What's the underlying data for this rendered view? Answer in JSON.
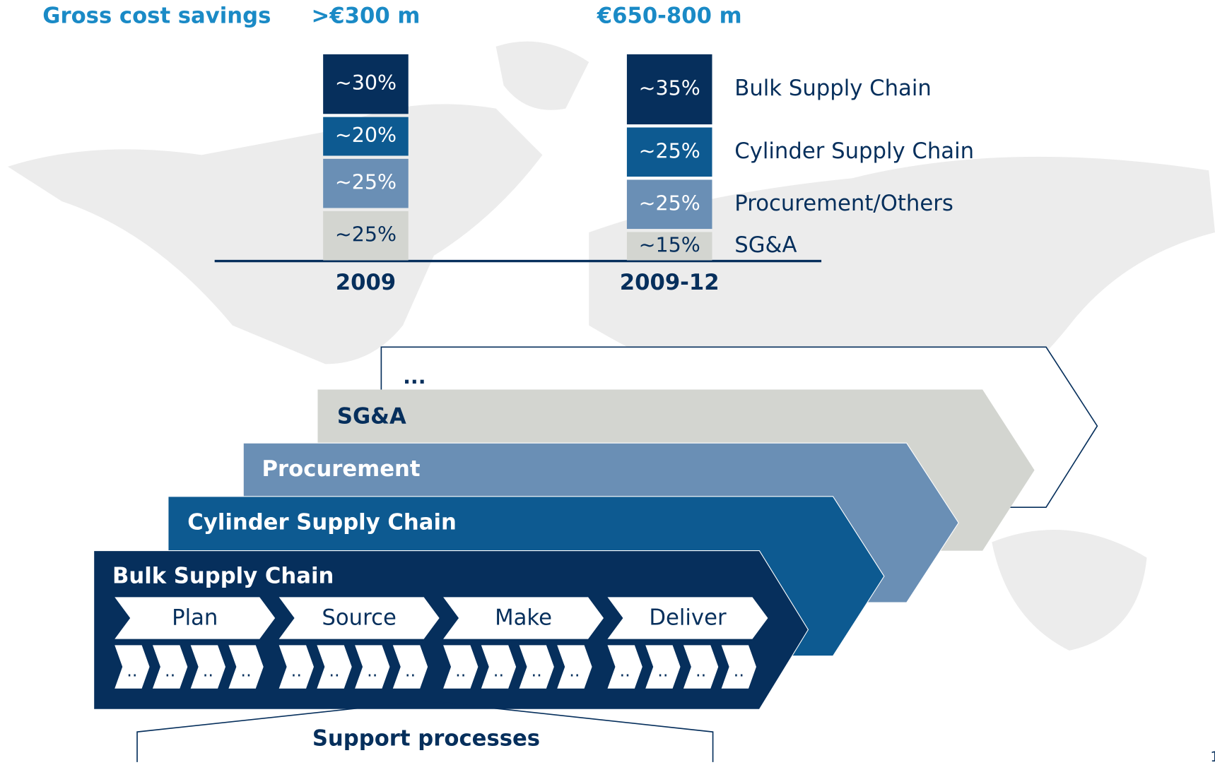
{
  "chart_data": {
    "type": "stacked-bar",
    "title": "Gross cost savings",
    "categories": [
      "2009",
      "2009-12"
    ],
    "totals": [
      ">€300 m",
      "€650-800 m"
    ],
    "ylim": [
      0,
      100
    ],
    "series": [
      {
        "name": "SG&A",
        "color": "#d3d5d0",
        "values": [
          25,
          15
        ],
        "value_labels": [
          "~25%",
          "~15%"
        ]
      },
      {
        "name": "Procurement/Others",
        "color": "#6a8fb5",
        "values": [
          25,
          25
        ],
        "value_labels": [
          "~25%",
          "~25%"
        ]
      },
      {
        "name": "Cylinder Supply Chain",
        "color": "#0d5a91",
        "values": [
          20,
          25
        ],
        "value_labels": [
          "~20%",
          "~25%"
        ]
      },
      {
        "name": "Bulk Supply Chain",
        "color": "#062f5c",
        "values": [
          30,
          35
        ],
        "value_labels": [
          "~30%",
          "~35%"
        ]
      }
    ]
  },
  "diagram": {
    "layers": [
      "...",
      "SG&A",
      "Procurement",
      "Cylinder Supply Chain",
      "Bulk Supply Chain"
    ],
    "steps": [
      "Plan",
      "Source",
      "Make",
      "Deliver"
    ],
    "sub_step": "..",
    "support": "Support processes",
    "page_number": "1"
  }
}
